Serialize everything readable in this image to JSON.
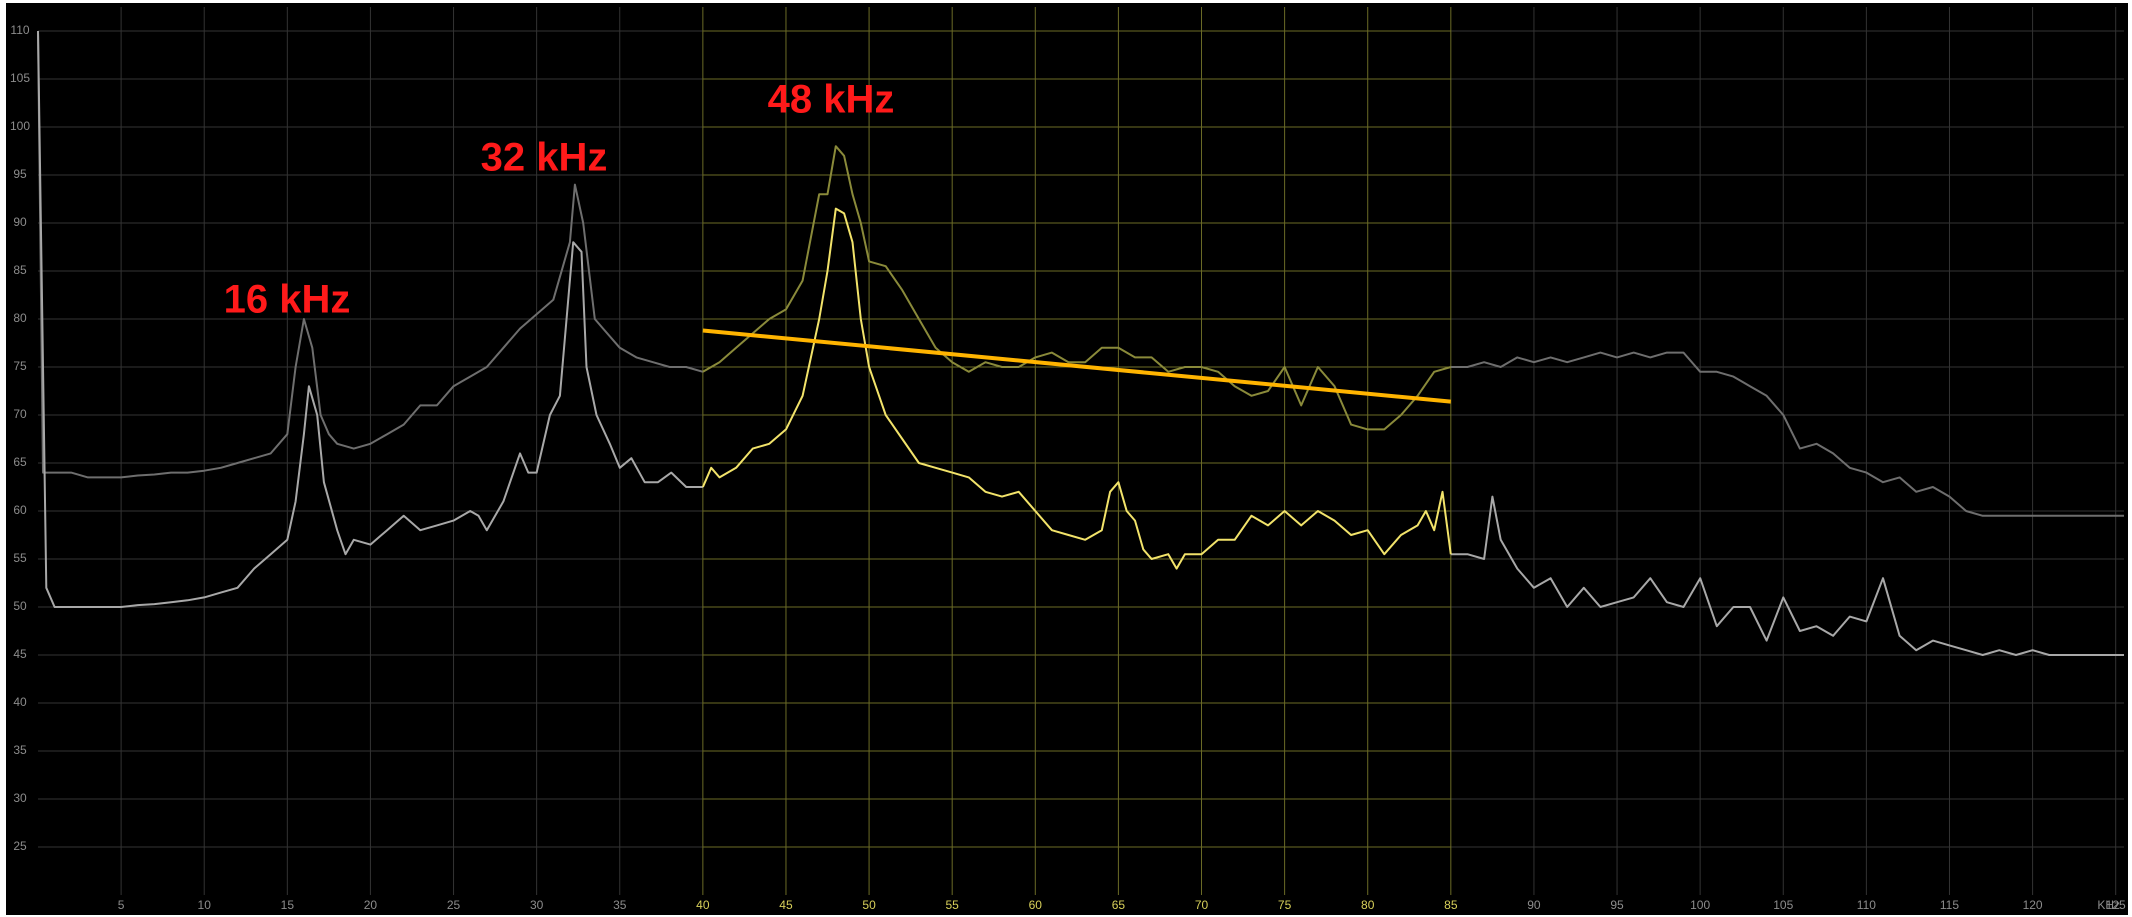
{
  "chart_data": {
    "type": "line",
    "annotations": [
      "16 kHz",
      "32 kHz",
      "48 kHz"
    ],
    "x_unit": "KHz",
    "xlim": [
      0,
      125.5
    ],
    "ylim": [
      20,
      112.5
    ],
    "xticks": [
      5,
      10,
      15,
      20,
      25,
      30,
      35,
      40,
      45,
      50,
      55,
      60,
      65,
      70,
      75,
      80,
      85,
      90,
      95,
      100,
      105,
      110,
      115,
      120,
      125
    ],
    "yticks": [
      25,
      30,
      35,
      40,
      45,
      50,
      55,
      60,
      65,
      70,
      75,
      80,
      85,
      90,
      95,
      100,
      105,
      110
    ],
    "grid": true,
    "highlight_xlim": [
      40,
      85
    ],
    "highlight_color": "#6b6b26",
    "grid_color": "#333333",
    "series": [
      {
        "color": "#6e6e6e",
        "x": [
          0,
          0.3,
          1,
          2,
          3,
          4,
          5,
          6,
          7,
          8,
          9,
          10,
          11,
          12,
          13,
          14,
          15,
          15.5,
          16,
          16.5,
          17,
          17.5,
          18,
          19,
          20,
          21,
          22,
          23,
          24,
          25,
          26,
          27,
          28,
          29,
          30,
          31,
          32,
          32.3,
          32.8,
          33.5,
          34,
          35,
          36,
          37,
          38,
          39,
          40,
          null,
          85,
          86,
          87,
          88,
          89,
          90,
          91,
          92,
          93,
          94,
          95,
          96,
          97,
          98,
          99,
          100,
          101,
          102,
          103,
          104,
          105,
          106,
          107,
          108,
          109,
          110,
          111,
          112,
          113,
          114,
          115,
          116,
          117,
          118,
          119,
          120,
          121,
          122,
          123,
          124,
          125.5
        ],
        "values": [
          110,
          64,
          64,
          64,
          63.5,
          63.5,
          63.5,
          63.7,
          63.8,
          64,
          64,
          64.2,
          64.5,
          65,
          65.5,
          66,
          68,
          75,
          80,
          77,
          70,
          68,
          67,
          66.5,
          67,
          68,
          69,
          71,
          71,
          73,
          74,
          75,
          77,
          79,
          80.5,
          82,
          88,
          94,
          90,
          80,
          79,
          77,
          76,
          75.5,
          75,
          75,
          74.5,
          null,
          75,
          75,
          75.5,
          75,
          76,
          75.5,
          76,
          75.5,
          76,
          76.5,
          76,
          76.5,
          76,
          76.5,
          76.5,
          74.5,
          74.5,
          74,
          73,
          72,
          70,
          66.5,
          67,
          66,
          64.5,
          64,
          63,
          63.5,
          62,
          62.5,
          61.5,
          60,
          59.5,
          59.5,
          59.5,
          59.5,
          59.5,
          59.5,
          59.5,
          59.5,
          59.5
        ]
      },
      {
        "color": "#a8a8a8",
        "x": [
          0,
          0.5,
          1,
          2,
          3,
          4,
          5,
          6,
          7,
          8,
          9,
          10,
          11,
          12,
          13,
          14,
          15,
          15.5,
          16,
          16.3,
          16.8,
          17.2,
          18,
          18.5,
          19,
          20,
          21,
          22,
          23,
          24,
          25,
          26,
          26.5,
          27,
          28,
          29,
          29.5,
          30,
          30.8,
          31.4,
          32.2,
          32.7,
          33,
          33.6,
          34.4,
          35,
          35.7,
          36.5,
          37.3,
          38.1,
          39,
          40,
          null,
          85,
          86,
          87,
          87.5,
          88,
          89,
          90,
          91,
          92,
          93,
          94,
          95,
          96,
          97,
          98,
          99,
          100,
          101,
          102,
          103,
          104,
          105,
          106,
          107,
          108,
          109,
          110,
          111,
          112,
          113,
          114,
          115,
          116,
          117,
          118,
          119,
          120,
          121,
          122,
          123,
          124,
          125.5
        ],
        "values": [
          110,
          52,
          50,
          50,
          50,
          50,
          50,
          50.2,
          50.3,
          50.5,
          50.7,
          51,
          51.5,
          52,
          54,
          55.5,
          57,
          61,
          68,
          73,
          70,
          63,
          58,
          55.5,
          57,
          56.5,
          58,
          59.5,
          58,
          58.5,
          59,
          60,
          59.5,
          58,
          61,
          66,
          64,
          64,
          70,
          72,
          88,
          87,
          75,
          70,
          67,
          64.5,
          65.5,
          63,
          63,
          64,
          62.5,
          62.5,
          null,
          55.5,
          55.5,
          55,
          61.5,
          57,
          54,
          52,
          53,
          50,
          52,
          50,
          50.5,
          51,
          53,
          50.5,
          50,
          53,
          48,
          50,
          50,
          46.5,
          51,
          47.5,
          48,
          47,
          49,
          48.5,
          53,
          47,
          45.5,
          46.5,
          46,
          45.5,
          45,
          45.5,
          45,
          45.5,
          45,
          45,
          45,
          45,
          45
        ]
      },
      {
        "color": "#8a8a3a",
        "x": [
          40,
          41,
          42,
          43,
          44,
          45,
          46,
          47,
          47.5,
          48,
          48.5,
          49,
          49.5,
          50,
          51,
          52,
          53,
          54,
          55,
          56,
          57,
          58,
          59,
          60,
          61,
          62,
          63,
          64,
          65,
          66,
          67,
          68,
          69,
          70,
          71,
          72,
          73,
          74,
          75,
          76,
          77,
          78,
          79,
          80,
          81,
          82,
          83,
          84,
          85
        ],
        "values": [
          74.5,
          75.5,
          77,
          78.5,
          80,
          81,
          84,
          93,
          93,
          98,
          97,
          93,
          90,
          86,
          85.5,
          83,
          80,
          77,
          75.5,
          74.5,
          75.5,
          75,
          75,
          76,
          76.5,
          75.5,
          75.5,
          77,
          77,
          76,
          76,
          74.5,
          75,
          75,
          74.5,
          73,
          72,
          72.5,
          75,
          71,
          75,
          73,
          69,
          68.5,
          68.5,
          70,
          72,
          74.5,
          75
        ]
      },
      {
        "color": "#f2e36a",
        "x": [
          40,
          40.5,
          41,
          42,
          43,
          44,
          45,
          46,
          46.5,
          47,
          47.5,
          48,
          48.5,
          49,
          49.5,
          50,
          51,
          52,
          53,
          54,
          55,
          56,
          57,
          58,
          59,
          60,
          61,
          62,
          63,
          64,
          64.5,
          65,
          65.5,
          66,
          66.5,
          67,
          68,
          68.5,
          69,
          70,
          71,
          72,
          73,
          74,
          75,
          76,
          77,
          78,
          79,
          80,
          81,
          82,
          83,
          83.5,
          84,
          84.5,
          85
        ],
        "values": [
          62.5,
          64.5,
          63.5,
          64.5,
          66.5,
          67,
          68.5,
          72,
          76,
          80,
          85,
          91.5,
          91,
          88,
          80,
          75,
          70,
          67.5,
          65,
          64.5,
          64,
          63.5,
          62,
          61.5,
          62,
          60,
          58,
          57.5,
          57,
          58,
          62,
          63,
          60,
          59,
          56,
          55,
          55.5,
          54,
          55.5,
          55.5,
          57,
          57,
          59.5,
          58.5,
          60,
          58.5,
          60,
          59,
          57.5,
          58,
          55.5,
          57.5,
          58.5,
          60,
          58,
          62,
          55.5
        ]
      }
    ],
    "trend_line": {
      "color": "#ffb400",
      "x": [
        40,
        85
      ],
      "values": [
        78.8,
        71.4
      ]
    }
  }
}
